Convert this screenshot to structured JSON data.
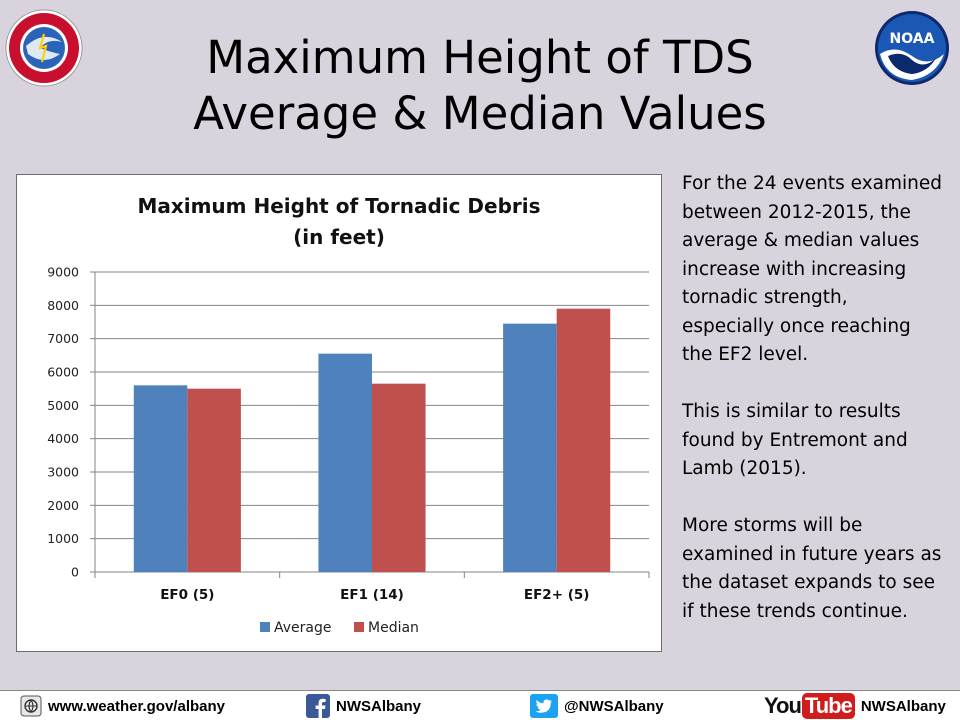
{
  "slide": {
    "title_line1": "Maximum Height of TDS",
    "title_line2": "Average & Median Values"
  },
  "logos": {
    "left_logo_text": "NATIONAL WEATHER SERVICE",
    "right_logo_text": "NOAA"
  },
  "side_text": {
    "paragraph1": "For the 24 events examined between 2012-2015, the average & median values increase with increasing tornadic strength, especially once reaching the EF2 level.",
    "paragraph2": "This is similar to results found by Entremont and Lamb (2015).",
    "paragraph3": "More storms will be examined in future years as the dataset expands to see if these trends continue."
  },
  "footer": {
    "website": "www.weather.gov/albany",
    "facebook": "NWSAlbany",
    "twitter": "@NWSAlbany",
    "youtube_you": "You",
    "youtube_tube": "Tube",
    "youtube": "NWSAlbany",
    "icons": [
      "globe-icon",
      "facebook-icon",
      "twitter-icon",
      "youtube-icon"
    ]
  },
  "chart_data": {
    "type": "bar",
    "title_line1": "Maximum Height of Tornadic Debris",
    "title_line2": "(in feet)",
    "categories": [
      "EF0 (5)",
      "EF1 (14)",
      "EF2+ (5)"
    ],
    "series": [
      {
        "name": "Average",
        "values": [
          5600,
          6550,
          7450
        ],
        "color": "#4f81bd"
      },
      {
        "name": "Median",
        "values": [
          5500,
          5650,
          7900
        ],
        "color": "#c0504d"
      }
    ],
    "ylim": [
      0,
      9000
    ],
    "yticks": [
      0,
      1000,
      2000,
      3000,
      4000,
      5000,
      6000,
      7000,
      8000,
      9000
    ],
    "grid": true,
    "legend_position": "bottom"
  }
}
